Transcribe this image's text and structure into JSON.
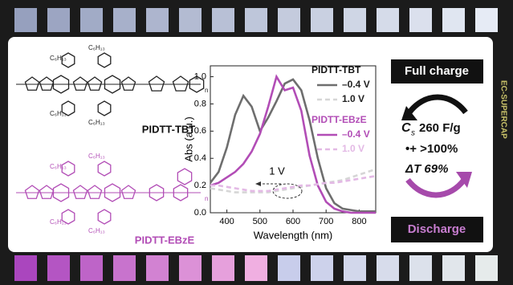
{
  "chart_data": {
    "type": "line",
    "x_label": "Wavelength (nm)",
    "y_label": "Abs (a.u.)",
    "x": [
      350,
      375,
      400,
      425,
      450,
      475,
      500,
      525,
      550,
      575,
      600,
      625,
      650,
      675,
      700,
      725,
      750,
      775,
      800,
      825,
      850
    ],
    "series": [
      {
        "group": "PIDTT-TBT",
        "name": "–0.4 V",
        "color": "#6e6e6e",
        "dashed": false,
        "values": [
          0.22,
          0.3,
          0.48,
          0.72,
          0.86,
          0.78,
          0.6,
          0.7,
          0.82,
          0.95,
          0.98,
          0.9,
          0.68,
          0.4,
          0.18,
          0.07,
          0.03,
          0.02,
          0.01,
          0.01,
          0.01
        ]
      },
      {
        "group": "PIDTT-TBT",
        "name": "1.0 V",
        "color": "#d6d6d6",
        "dashed": true,
        "values": [
          0.18,
          0.17,
          0.16,
          0.15,
          0.15,
          0.15,
          0.15,
          0.15,
          0.16,
          0.17,
          0.18,
          0.19,
          0.2,
          0.21,
          0.22,
          0.23,
          0.24,
          0.26,
          0.28,
          0.3,
          0.32
        ]
      },
      {
        "group": "PIDTT-EBzE",
        "name": "–0.4 V",
        "color": "#b24db6",
        "dashed": false,
        "values": [
          0.2,
          0.22,
          0.26,
          0.3,
          0.36,
          0.45,
          0.58,
          0.78,
          1.0,
          0.9,
          0.92,
          0.75,
          0.42,
          0.2,
          0.08,
          0.03,
          0.01,
          0,
          0,
          0,
          0
        ]
      },
      {
        "group": "PIDTT-EBzE",
        "name": "1.0 V",
        "color": "#e3b9e5",
        "dashed": true,
        "values": [
          0.2,
          0.2,
          0.19,
          0.18,
          0.17,
          0.16,
          0.16,
          0.16,
          0.17,
          0.18,
          0.19,
          0.2,
          0.2,
          0.21,
          0.22,
          0.22,
          0.23,
          0.24,
          0.25,
          0.26,
          0.27
        ]
      }
    ],
    "xlim": [
      350,
      850
    ],
    "xticks": [
      400,
      500,
      600,
      700,
      800
    ],
    "ylim": [
      0,
      1.08
    ],
    "yticks": [
      {
        "value": 0,
        "label": "0.0"
      },
      0.2,
      0.4,
      0.6,
      {
        "value": 0.8,
        "label": "0.8"
      },
      {
        "value": 1,
        "label": "1.0"
      }
    ],
    "annotation": "1 V"
  },
  "structures": {
    "top_name": "PIDTT-TBT",
    "bottom_name": "PIDTT-EBzE",
    "substituent": "C₆H₁₃",
    "repeat": "n"
  },
  "panel": {
    "full": "Full charge",
    "cap_symbol": "C",
    "cap_sub": "s",
    "cap_value": "260 F/g",
    "polaron": "•+ >100%",
    "transmittance": "ΔT 69%",
    "discharge": "Discharge"
  },
  "side_label": "EC-SUPERCAP"
}
